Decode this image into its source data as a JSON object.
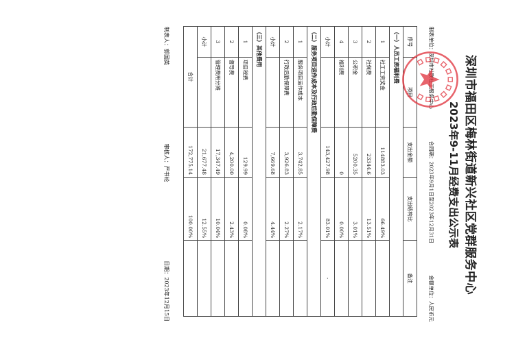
{
  "title": "深圳市福田区梅林街道新兴社区党群服务中心",
  "subtitle": "2023年9-11月经费支出公示表",
  "meta": {
    "unit": "制表单位：深圳市社联社工服务中心",
    "contract": "合同期：2023年9月1日至2023年12月31日",
    "currency": "金额单位：人民币元"
  },
  "stamp": {
    "text": "深圳市社联社工服务中心",
    "color": "#e0303a"
  },
  "table": {
    "headers": [
      "序号",
      "项目",
      "支出金额",
      "支出结构比",
      "备注"
    ],
    "sections": [
      {
        "title": "（一）人员工资福利费",
        "rows": [
          {
            "idx": "1",
            "item": "社工工资奖金",
            "amount": "114883.03",
            "ratio": "66.49%",
            "note": ""
          },
          {
            "idx": "2",
            "item": "社保费",
            "amount": "23344.6",
            "ratio": "13.51%",
            "note": ""
          },
          {
            "idx": "3",
            "item": "公积金",
            "amount": "5200.35",
            "ratio": "3.01%",
            "note": ""
          },
          {
            "idx": "4",
            "item": "福利费",
            "amount": "0",
            "ratio": "0.00%",
            "note": ""
          }
        ],
        "subtotal": {
          "label": "小计",
          "amount": "143,427.98",
          "ratio": "83.01%",
          "note": "-"
        }
      },
      {
        "title": "（二）服务项目运作成本及行政后勤保障费",
        "rows": [
          {
            "idx": "1",
            "item": "服务项目运作成本",
            "amount": "3,742.85",
            "ratio": "2.17%",
            "note": ""
          },
          {
            "idx": "2",
            "item": "行政后勤保障费",
            "amount": "3,926.83",
            "ratio": "2.27%",
            "note": ""
          }
        ],
        "subtotal": {
          "label": "小计",
          "amount": "7,669.68",
          "ratio": "4.44%",
          "note": ""
        }
      },
      {
        "title": "（三）其他费用",
        "rows": [
          {
            "idx": "1",
            "item": "项目税费",
            "amount": "129.99",
            "ratio": "0.08%",
            "note": ""
          },
          {
            "idx": "2",
            "item": "督导费",
            "amount": "4,200.00",
            "ratio": "2.43%",
            "note": ""
          },
          {
            "idx": "3",
            "item": "管理费用分摊",
            "amount": "17,347.49",
            "ratio": "10.04%",
            "note": ""
          }
        ],
        "subtotal": {
          "label": "小计",
          "amount": "21,677.48",
          "ratio": "12.55%",
          "note": ""
        }
      }
    ],
    "total": {
      "label": "合计",
      "amount": "172,775.14",
      "ratio": "100.00%"
    }
  },
  "footer": {
    "preparer": "制表人：郭国英",
    "reviewer": "审核人：严书纶",
    "date": "日期：2023年12月15日"
  }
}
